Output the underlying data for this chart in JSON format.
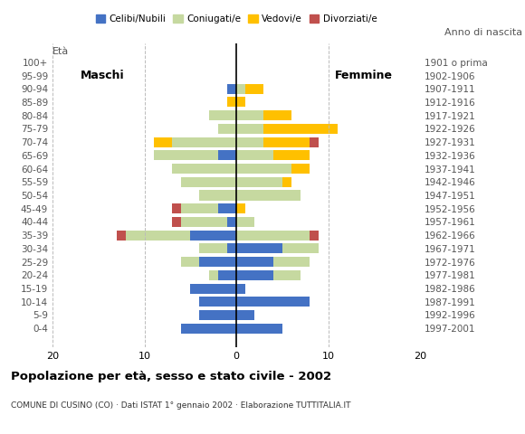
{
  "age_groups": [
    "100+",
    "95-99",
    "90-94",
    "85-89",
    "80-84",
    "75-79",
    "70-74",
    "65-69",
    "60-64",
    "55-59",
    "50-54",
    "45-49",
    "40-44",
    "35-39",
    "30-34",
    "25-29",
    "20-24",
    "15-19",
    "10-14",
    "5-9",
    "0-4"
  ],
  "birth_years": [
    "1901 o prima",
    "1902-1906",
    "1907-1911",
    "1912-1916",
    "1917-1921",
    "1922-1926",
    "1927-1931",
    "1932-1936",
    "1937-1941",
    "1942-1946",
    "1947-1951",
    "1952-1956",
    "1957-1961",
    "1962-1966",
    "1967-1971",
    "1972-1976",
    "1977-1981",
    "1982-1986",
    "1987-1991",
    "1992-1996",
    "1997-2001"
  ],
  "males": {
    "celibi": [
      0,
      0,
      1,
      0,
      0,
      0,
      0,
      2,
      0,
      0,
      0,
      2,
      1,
      5,
      1,
      4,
      2,
      5,
      4,
      4,
      6
    ],
    "coniugati": [
      0,
      0,
      0,
      0,
      3,
      2,
      7,
      7,
      7,
      6,
      4,
      4,
      5,
      7,
      3,
      2,
      1,
      0,
      0,
      0,
      0
    ],
    "vedovi": [
      0,
      0,
      0,
      1,
      0,
      0,
      2,
      0,
      0,
      0,
      0,
      0,
      0,
      0,
      0,
      0,
      0,
      0,
      0,
      0,
      0
    ],
    "divorziati": [
      0,
      0,
      0,
      0,
      0,
      0,
      0,
      0,
      0,
      0,
      0,
      1,
      1,
      1,
      0,
      0,
      0,
      0,
      0,
      0,
      0
    ]
  },
  "females": {
    "celibi": [
      0,
      0,
      0,
      0,
      0,
      0,
      0,
      0,
      0,
      0,
      0,
      0,
      0,
      0,
      5,
      4,
      4,
      1,
      8,
      2,
      5
    ],
    "coniugati": [
      0,
      0,
      1,
      0,
      3,
      3,
      3,
      4,
      6,
      5,
      7,
      0,
      2,
      8,
      4,
      4,
      3,
      0,
      0,
      0,
      0
    ],
    "vedovi": [
      0,
      0,
      2,
      1,
      3,
      8,
      5,
      4,
      2,
      1,
      0,
      1,
      0,
      0,
      0,
      0,
      0,
      0,
      0,
      0,
      0
    ],
    "divorziati": [
      0,
      0,
      0,
      0,
      0,
      0,
      1,
      0,
      0,
      0,
      0,
      0,
      0,
      1,
      0,
      0,
      0,
      0,
      0,
      0,
      0
    ]
  },
  "colors": {
    "celibi": "#4472c4",
    "coniugati": "#c6d9a0",
    "vedovi": "#ffc000",
    "divorziati": "#c0504d"
  },
  "xlim": [
    -20,
    20
  ],
  "xticks": [
    -20,
    -10,
    0,
    10,
    20
  ],
  "xticklabels": [
    "20",
    "10",
    "0",
    "10",
    "20"
  ],
  "title": "Popolazione per età, sesso e stato civile - 2002",
  "subtitle": "COMUNE DI CUSINO (CO) · Dati ISTAT 1° gennaio 2002 · Elaborazione TUTTITALIA.IT",
  "ylabel_left": "Età",
  "ylabel_right": "Anno di nascita",
  "label_maschi": "Maschi",
  "label_femmine": "Femmine",
  "legend_labels": [
    "Celibi/Nubili",
    "Coniugati/e",
    "Vedovi/e",
    "Divorziati/e"
  ],
  "background_color": "#ffffff"
}
